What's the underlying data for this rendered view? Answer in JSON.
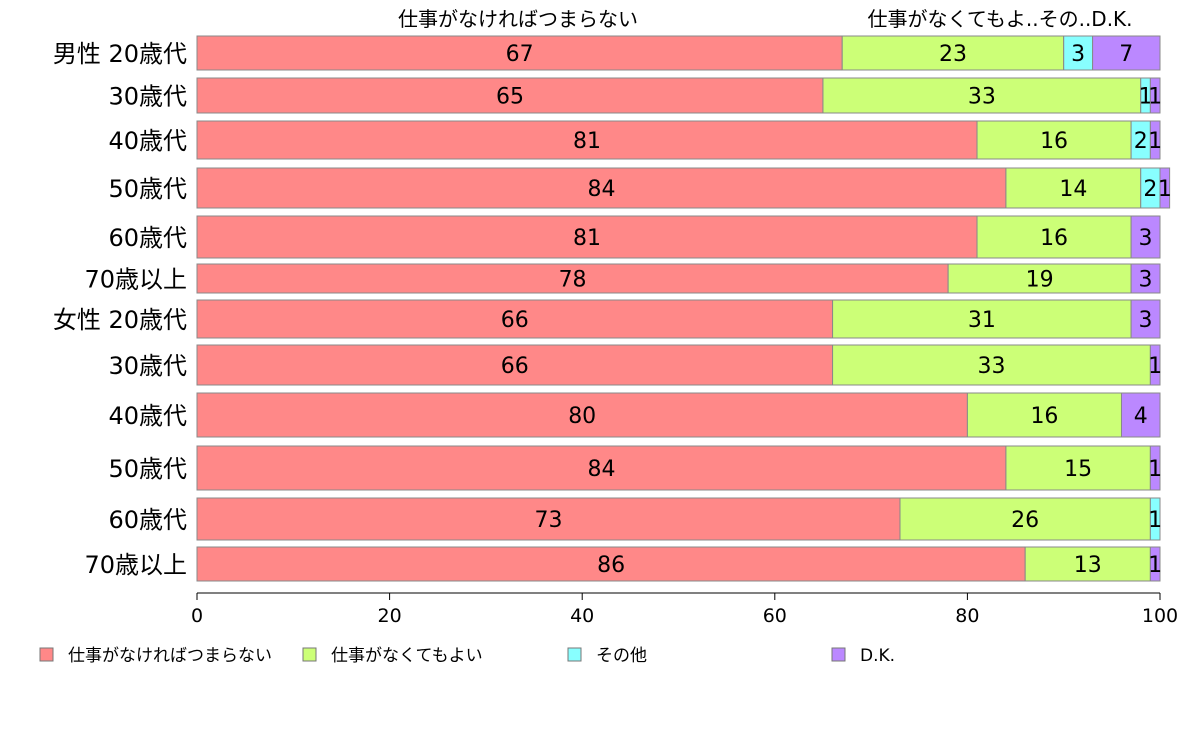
{
  "chart_data": {
    "type": "bar",
    "orientation": "horizontal",
    "stacked": true,
    "categories": [
      "男性 20歳代",
      "30歳代",
      "40歳代",
      "50歳代",
      "60歳代",
      "70歳以上",
      "女性 20歳代",
      "30歳代",
      "40歳代",
      "50歳代",
      "60歳代",
      "70歳以上"
    ],
    "series": [
      {
        "name": "仕事がなければつまらない",
        "color": "#ff8888",
        "values": [
          67,
          65,
          81,
          84,
          81,
          78,
          66,
          66,
          80,
          84,
          73,
          86
        ]
      },
      {
        "name": "仕事がなくてもよい",
        "color": "#ccff77",
        "values": [
          23,
          33,
          16,
          14,
          16,
          19,
          31,
          33,
          16,
          15,
          26,
          13
        ]
      },
      {
        "name": "その他",
        "color": "#88ffff",
        "values": [
          3,
          1,
          2,
          2,
          0,
          0,
          0,
          0,
          0,
          0,
          1,
          0
        ]
      },
      {
        "name": "D.K.",
        "color": "#bb88ff",
        "values": [
          7,
          1,
          1,
          1,
          3,
          3,
          3,
          1,
          4,
          1,
          0,
          1
        ]
      }
    ],
    "top_labels": [
      "仕事がなければつまらない",
      "仕事がなくてもよ..その..D.K."
    ],
    "xlim": [
      0,
      100
    ],
    "xticks": [
      "0",
      "20",
      "40",
      "60",
      "80",
      "100"
    ],
    "xlabel": "",
    "ylabel": "",
    "grid": false,
    "legend_position": "bottom"
  }
}
